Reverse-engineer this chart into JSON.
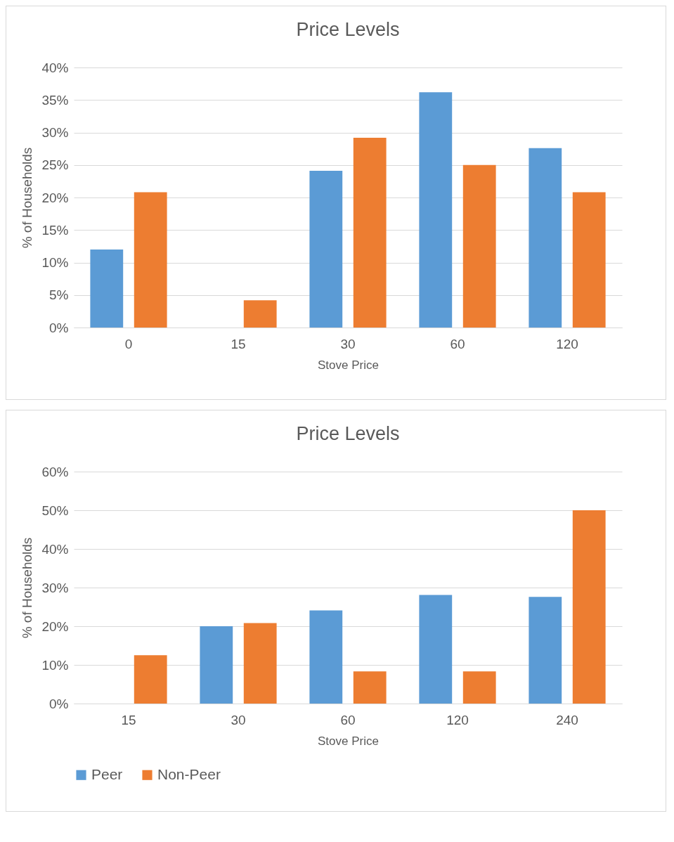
{
  "chart_data": [
    {
      "type": "bar",
      "title": "Price Levels",
      "xlabel": "Stove Price",
      "ylabel": "% of Households",
      "categories": [
        "0",
        "15",
        "30",
        "60",
        "120"
      ],
      "series": [
        {
          "color": "#5b9bd5",
          "values": [
            12,
            0,
            24.1,
            36.2,
            27.6
          ]
        },
        {
          "color": "#ed7d31",
          "values": [
            20.8,
            4.2,
            29.2,
            25,
            20.8
          ]
        }
      ],
      "ylim": [
        0,
        40
      ],
      "yticks": [
        {
          "value": 0,
          "label": "0%"
        },
        {
          "value": 5,
          "label": "5%"
        },
        {
          "value": 10,
          "label": "10%"
        },
        {
          "value": 15,
          "label": "15%"
        },
        {
          "value": 20,
          "label": "20%"
        },
        {
          "value": 25,
          "label": "25%"
        },
        {
          "value": 30,
          "label": "30%"
        },
        {
          "value": 35,
          "label": "35%"
        },
        {
          "value": 40,
          "label": "40%"
        }
      ],
      "grid": "y",
      "legend": false
    },
    {
      "type": "bar",
      "title": "Price Levels",
      "xlabel": "Stove Price",
      "ylabel": "% of Households",
      "categories": [
        "15",
        "30",
        "60",
        "120",
        "240"
      ],
      "series": [
        {
          "name": "Peer",
          "color": "#5b9bd5",
          "values": [
            0,
            20,
            24.1,
            28.1,
            27.6
          ]
        },
        {
          "name": "Non-Peer",
          "color": "#ed7d31",
          "values": [
            12.5,
            20.8,
            8.3,
            8.3,
            50
          ]
        }
      ],
      "ylim": [
        0,
        60
      ],
      "yticks": [
        {
          "value": 0,
          "label": "0%"
        },
        {
          "value": 10,
          "label": "10%"
        },
        {
          "value": 20,
          "label": "20%"
        },
        {
          "value": 30,
          "label": "30%"
        },
        {
          "value": 40,
          "label": "40%"
        },
        {
          "value": 50,
          "label": "50%"
        },
        {
          "value": 60,
          "label": "60%"
        }
      ],
      "grid": "y",
      "legend": "bottom"
    }
  ]
}
